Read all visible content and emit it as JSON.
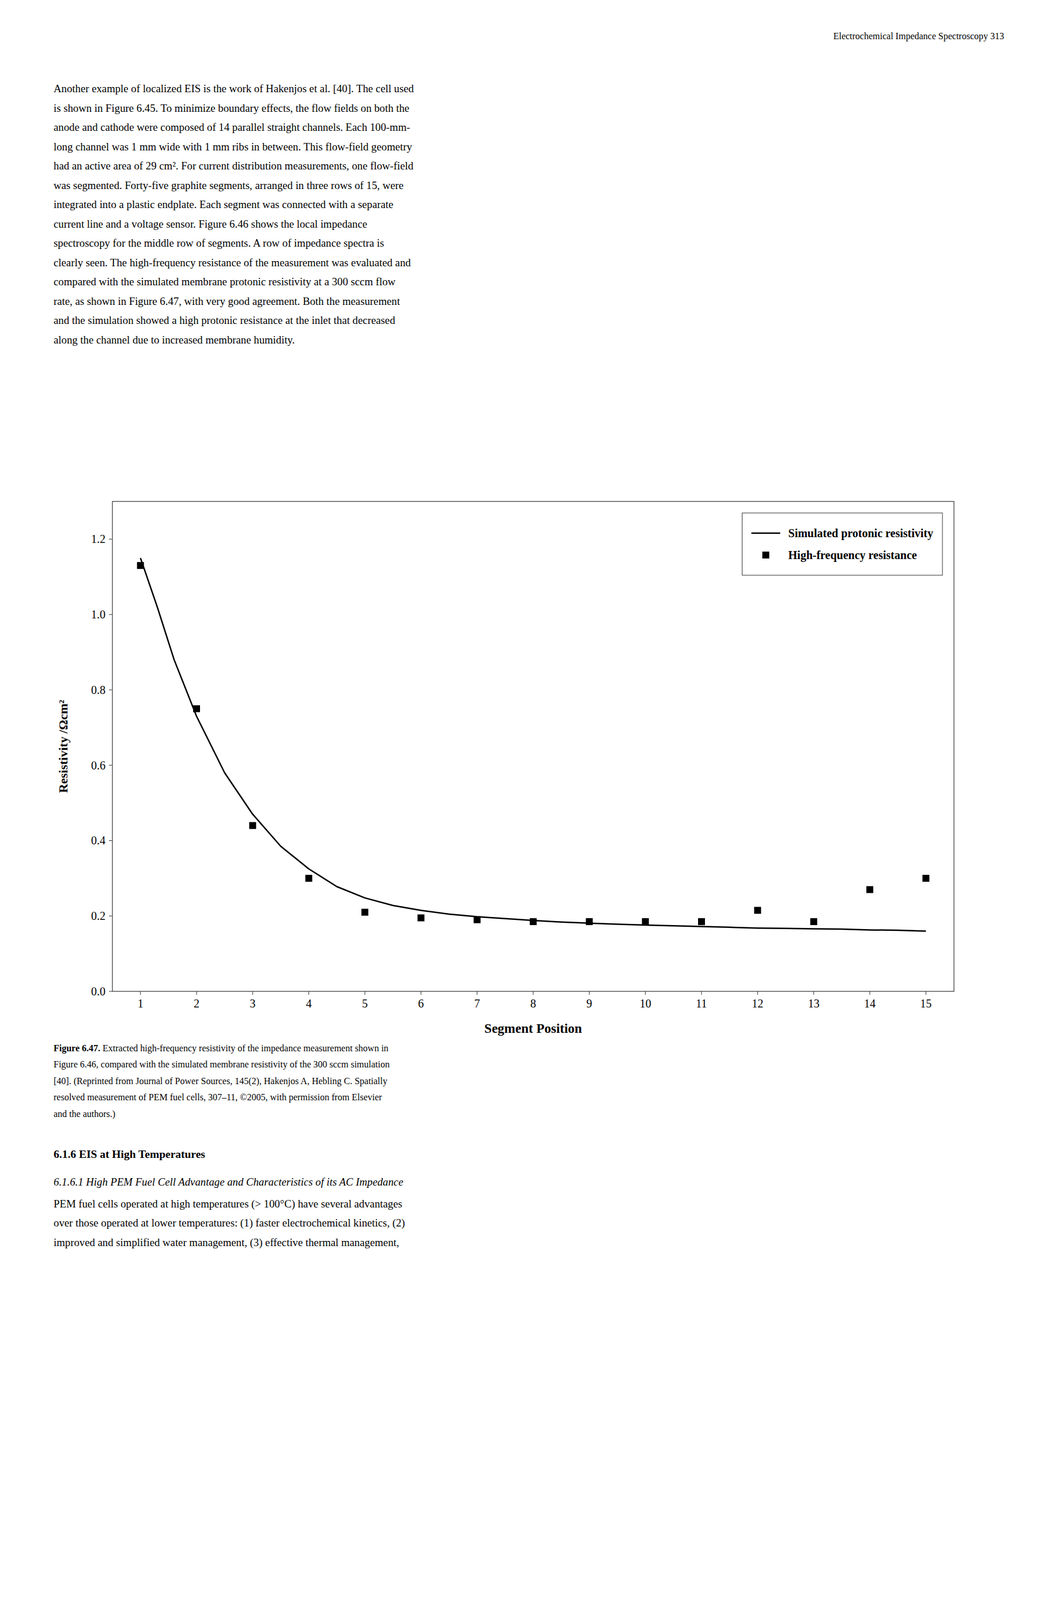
{
  "page": {
    "header_text": "Electrochemical Impedance Spectroscopy    313",
    "body_text_lines": [
      "Another example of localized EIS is the work of Hakenjos et al. [40]. The cell used",
      "is shown in Figure 6.45. To minimize boundary effects, the flow fields on both the",
      "anode and cathode were composed of 14 parallel straight channels. Each 100-mm-",
      "long channel was 1 mm wide with 1 mm ribs in between. This flow-field geometry",
      "had an active area of 29 cm². For current distribution measurements, one flow-field",
      "was segmented. Forty-five graphite segments, arranged in three rows of 15, were",
      "integrated into a plastic endplate. Each segment was connected with a separate",
      "current line and a voltage sensor. Figure 6.46 shows the local impedance",
      "spectroscopy for the middle row of segments.  A row of impedance spectra is",
      "clearly seen. The high-frequency resistance of the measurement was evaluated and",
      "compared with the simulated membrane protonic resistivity at a 300 sccm flow",
      "rate, as shown in Figure 6.47, with very good agreement. Both the measurement",
      "and the simulation showed a high protonic resistance at the inlet that decreased",
      "along the channel due to increased membrane humidity."
    ],
    "caption_bold_start": "Figure 6.47.",
    "caption_rest_line1": " Extracted high-frequency resistivity of the impedance measurement shown in",
    "caption_lines": [
      "Figure 6.46, compared with the simulated membrane resistivity of the 300 sccm simulation",
      "[40]. (Reprinted from Journal of Power Sources, 145(2), Hakenjos A, Hebling C. Spatially",
      "resolved measurement of PEM fuel cells, 307–11, ©2005, with permission from Elsevier",
      "and the authors.)"
    ],
    "section_heading": "6.1.6 EIS at High Temperatures",
    "subsection_heading": "6.1.6.1 High PEM Fuel Cell Advantage and Characteristics of its AC Impedance",
    "bottom_text_lines": [
      "PEM fuel cells operated at high temperatures (> 100°C) have several advantages",
      "over those operated at lower temperatures: (1) faster electrochemical kinetics, (2)",
      "improved and simplified water management, (3) effective thermal management,"
    ]
  },
  "chart_data": {
    "type": "line",
    "xlabel": "Segment Position",
    "ylabel": "Resistivity /Ωcm²",
    "legend": "upper right",
    "grid": false,
    "xlim": [
      0.5,
      15.5
    ],
    "ylim": [
      0.0,
      1.3
    ],
    "xticks": [
      1,
      2,
      3,
      4,
      5,
      6,
      7,
      8,
      9,
      10,
      11,
      12,
      13,
      14,
      15
    ],
    "yticks": [
      {
        "value": 0.0,
        "label": "0.0"
      },
      0.2,
      0.4,
      0.6,
      0.8,
      {
        "value": 1.0,
        "label": "1.0"
      },
      1.2
    ],
    "series": [
      {
        "name": "Simulated protonic resistivity",
        "type": "line",
        "line_style": "solid",
        "color": "#000000",
        "x": [
          1,
          1.3,
          1.6,
          2,
          2.5,
          3,
          3.5,
          4,
          4.5,
          5,
          5.5,
          6,
          6.5,
          7,
          7.5,
          8,
          8.5,
          9,
          9.5,
          10,
          10.5,
          11,
          11.5,
          12,
          12.5,
          13,
          13.5,
          14,
          14.5,
          15
        ],
        "values": [
          1.15,
          1.02,
          0.88,
          0.73,
          0.58,
          0.47,
          0.385,
          0.325,
          0.278,
          0.248,
          0.228,
          0.215,
          0.205,
          0.198,
          0.193,
          0.188,
          0.184,
          0.181,
          0.178,
          0.176,
          0.174,
          0.172,
          0.17,
          0.168,
          0.167,
          0.166,
          0.165,
          0.163,
          0.162,
          0.16
        ]
      },
      {
        "name": "High-frequency resistance",
        "type": "scatter",
        "marker": "square",
        "color": "#000000",
        "x": [
          1,
          2,
          3,
          4,
          5,
          6,
          7,
          8,
          9,
          10,
          11,
          12,
          13,
          14,
          15
        ],
        "values": [
          1.13,
          0.75,
          0.44,
          0.3,
          0.21,
          0.195,
          0.19,
          0.185,
          0.185,
          0.185,
          0.185,
          0.215,
          0.185,
          0.27,
          0.3
        ]
      }
    ]
  }
}
